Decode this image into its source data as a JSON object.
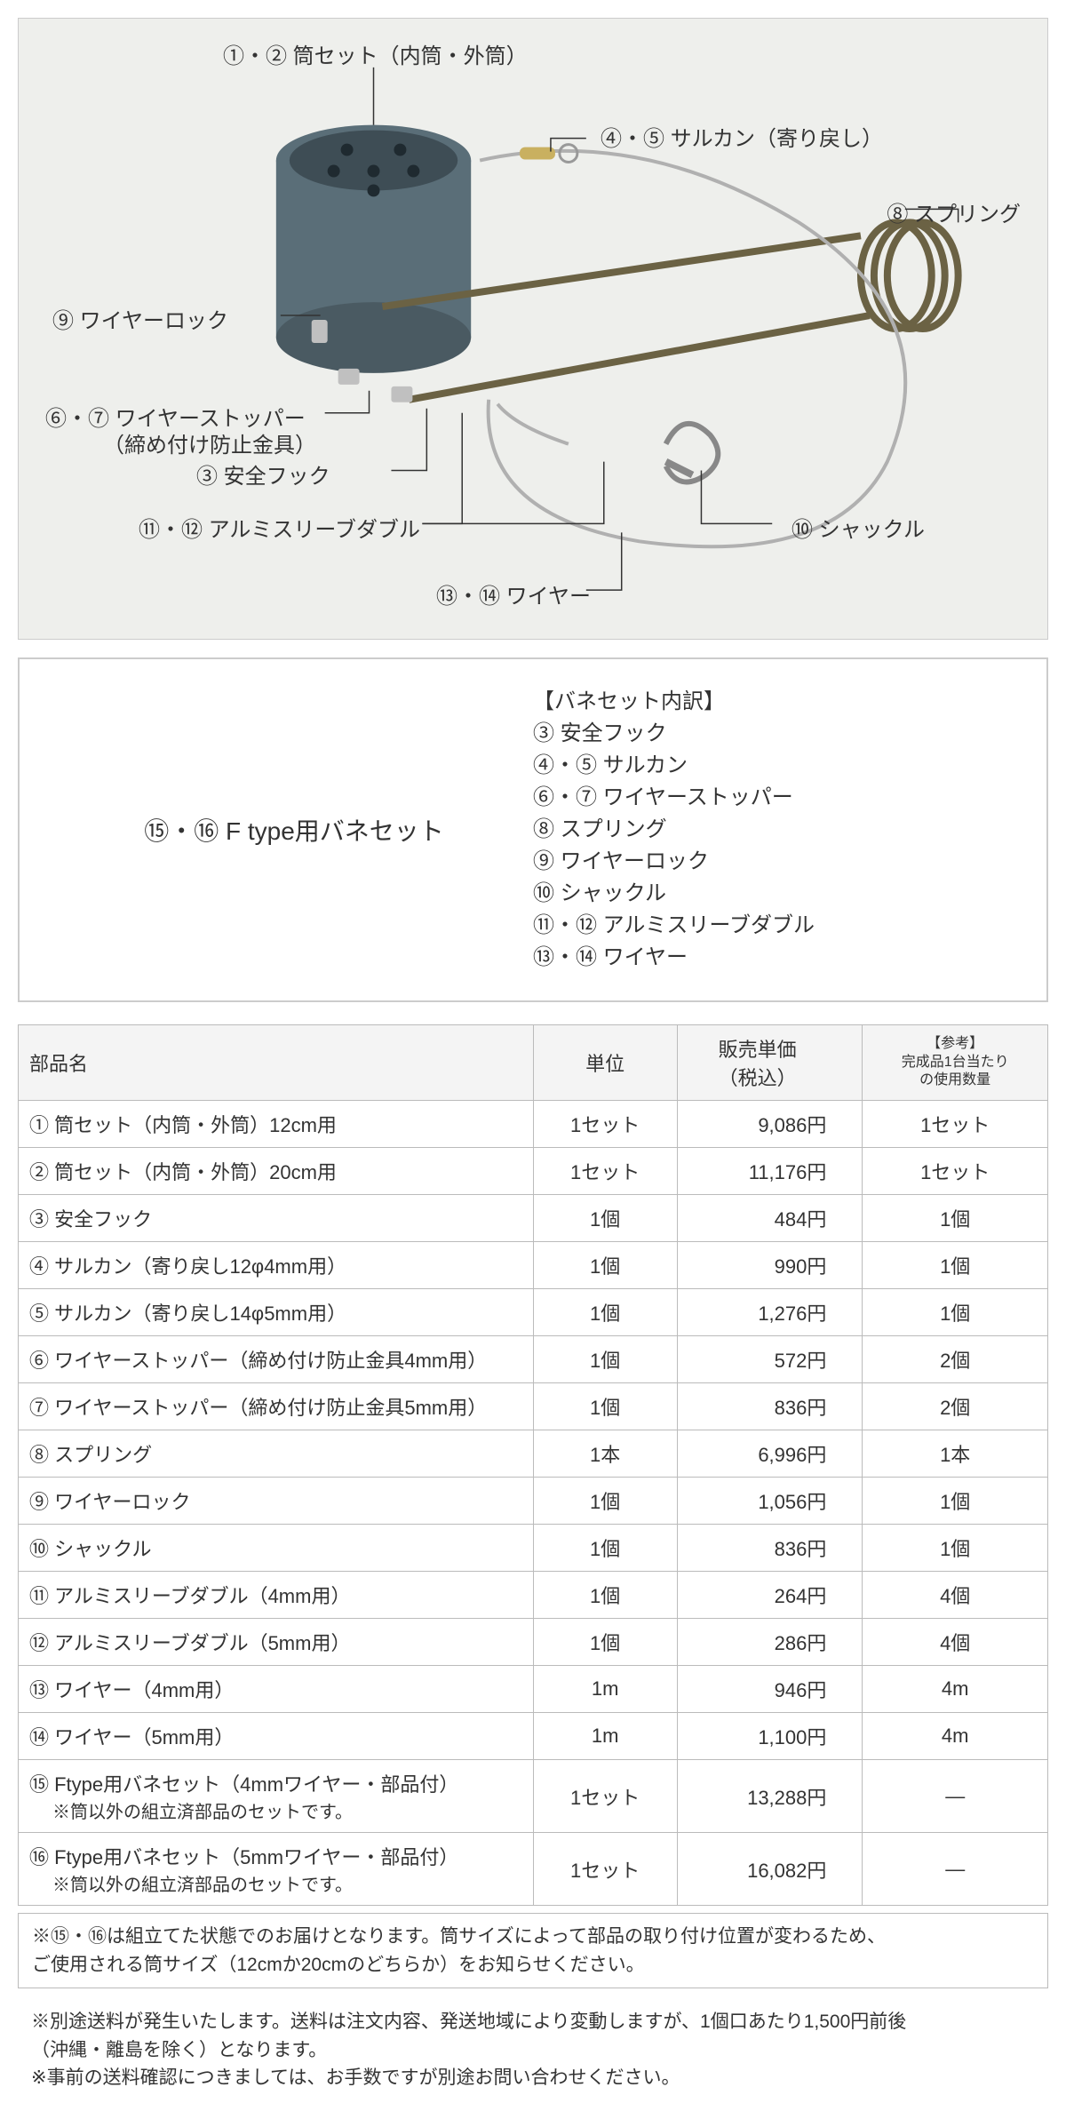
{
  "diagram": {
    "labels": {
      "top": "①・② 筒セット（内筒・外筒）",
      "sarukan": "④・⑤ サルカン（寄り戻し）",
      "spring": "⑧ スプリング",
      "wirelock": "⑨ ワイヤーロック",
      "stopper1": "⑥・⑦ ワイヤーストッパー",
      "stopper2": "（締め付け防止金具）",
      "hook": "③ 安全フック",
      "sleeve": "⑪・⑫ アルミスリーブダブル",
      "shackle": "⑩ シャックル",
      "wire": "⑬・⑭ ワイヤー"
    }
  },
  "set": {
    "title": "⑮・⑯ F type用バネセット",
    "header": "【バネセット内訳】",
    "items": [
      "③ 安全フック",
      "④・⑤ サルカン",
      "⑥・⑦ ワイヤーストッパー",
      "⑧ スプリング",
      "⑨ ワイヤーロック",
      "⑩ シャックル",
      "⑪・⑫ アルミスリーブダブル",
      "⑬・⑭ ワイヤー"
    ]
  },
  "table": {
    "headers": {
      "name": "部品名",
      "unit": "単位",
      "price": "販売単価\n（税込）",
      "ref": "【参考】\n完成品1台当たり\nの使用数量"
    },
    "rows": [
      {
        "name": "① 筒セット（内筒・外筒）12cm用",
        "unit": "1セット",
        "price": "9,086円",
        "ref": "1セット"
      },
      {
        "name": "② 筒セット（内筒・外筒）20cm用",
        "unit": "1セット",
        "price": "11,176円",
        "ref": "1セット"
      },
      {
        "name": "③ 安全フック",
        "unit": "1個",
        "price": "484円",
        "ref": "1個"
      },
      {
        "name": "④ サルカン（寄り戻し12φ4mm用）",
        "unit": "1個",
        "price": "990円",
        "ref": "1個"
      },
      {
        "name": "⑤ サルカン（寄り戻し14φ5mm用）",
        "unit": "1個",
        "price": "1,276円",
        "ref": "1個"
      },
      {
        "name": "⑥ ワイヤーストッパー（締め付け防止金具4mm用）",
        "unit": "1個",
        "price": "572円",
        "ref": "2個"
      },
      {
        "name": "⑦ ワイヤーストッパー（締め付け防止金具5mm用）",
        "unit": "1個",
        "price": "836円",
        "ref": "2個"
      },
      {
        "name": "⑧ スプリング",
        "unit": "1本",
        "price": "6,996円",
        "ref": "1本"
      },
      {
        "name": "⑨ ワイヤーロック",
        "unit": "1個",
        "price": "1,056円",
        "ref": "1個"
      },
      {
        "name": "⑩ シャックル",
        "unit": "1個",
        "price": "836円",
        "ref": "1個"
      },
      {
        "name": "⑪ アルミスリーブダブル（4mm用）",
        "unit": "1個",
        "price": "264円",
        "ref": "4個"
      },
      {
        "name": "⑫ アルミスリーブダブル（5mm用）",
        "unit": "1個",
        "price": "286円",
        "ref": "4個"
      },
      {
        "name": "⑬ ワイヤー（4mm用）",
        "unit": "1m",
        "price": "946円",
        "ref": "4m"
      },
      {
        "name": "⑭ ワイヤー（5mm用）",
        "unit": "1m",
        "price": "1,100円",
        "ref": "4m"
      },
      {
        "name": "⑮ Ftype用バネセット（4mmワイヤー・部品付）",
        "sub": "※筒以外の組立済部品のセットです。",
        "unit": "1セット",
        "price": "13,288円",
        "ref": "—"
      },
      {
        "name": "⑯ Ftype用バネセット（5mmワイヤー・部品付）",
        "sub": "※筒以外の組立済部品のセットです。",
        "unit": "1セット",
        "price": "16,082円",
        "ref": "—"
      }
    ]
  },
  "notices": {
    "n1a": "※⑮・⑯は組立てた状態でのお届けとなります。筒サイズによって部品の取り付け位置が変わるため、",
    "n1b": "ご使用される筒サイズ（12cmか20cmのどちらか）をお知らせください。",
    "n2a": "※別途送料が発生いたします。送料は注文内容、発送地域により変動しますが、1個口あたり1,500円前後",
    "n2b": "（沖縄・離島を除く）となります。",
    "n2c": "※事前の送料確認につきましては、お手数ですが別途お問い合わせください。"
  }
}
